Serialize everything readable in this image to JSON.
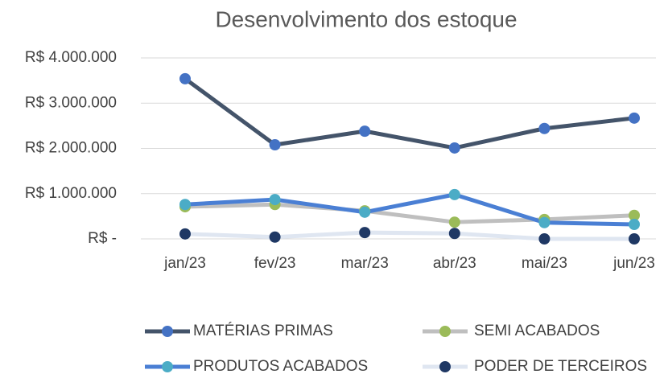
{
  "chart_data": {
    "type": "line",
    "title": "Desenvolvimento dos estoque",
    "categories": [
      "jan/23",
      "fev/23",
      "mar/23",
      "abr/23",
      "mai/23",
      "jun/23"
    ],
    "series": [
      {
        "name": "MATÉRIAS PRIMAS",
        "color": "#44546a",
        "marker_color": "#4472c4",
        "values": [
          3540000,
          2080000,
          2380000,
          2010000,
          2440000,
          2670000
        ]
      },
      {
        "name": "SEMI ACABADOS",
        "color": "#bfbfbf",
        "marker_color": "#9bbb59",
        "values": [
          710000,
          760000,
          620000,
          370000,
          430000,
          520000
        ]
      },
      {
        "name": "PRODUTOS ACABADOS",
        "color": "#4a7fd4",
        "marker_color": "#4bacc6",
        "values": [
          760000,
          870000,
          590000,
          980000,
          360000,
          320000
        ]
      },
      {
        "name": "PODER DE TERCEIROS",
        "color": "#dfe6f1",
        "marker_color": "#1f3864",
        "values": [
          110000,
          40000,
          140000,
          120000,
          0,
          0
        ]
      }
    ],
    "ylim": [
      0,
      4000000
    ],
    "yticks": [
      {
        "value": 0,
        "label": "R$ -"
      },
      {
        "value": 1000000,
        "label": "R$ 1.000.000"
      },
      {
        "value": 2000000,
        "label": "R$ 2.000.000"
      },
      {
        "value": 3000000,
        "label": "R$ 3.000.000"
      },
      {
        "value": 4000000,
        "label": "R$ 4.000.000"
      }
    ],
    "grid": true,
    "legend": "bottom"
  }
}
